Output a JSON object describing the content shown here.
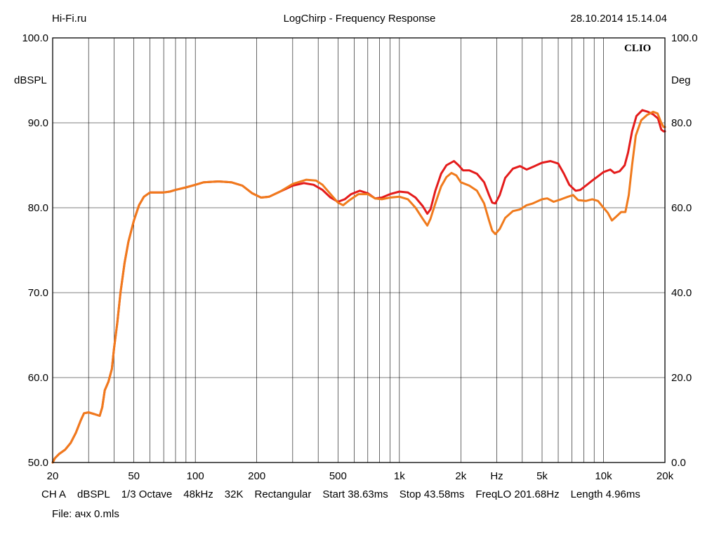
{
  "header": {
    "left": "Hi-Fi.ru",
    "center": "LogChirp - Frequency Response",
    "right": "28.10.2014 15.14.04"
  },
  "logo": "CLIO",
  "footer": {
    "params": [
      "CH A",
      "dBSPL",
      "1/3 Octave",
      "48kHz",
      "32K",
      "Rectangular",
      "Start 38.63ms",
      "Stop 43.58ms",
      "FreqLO 201.68Hz",
      "Length 4.96ms"
    ],
    "file": "File: ачх 0.mls"
  },
  "chart_data": {
    "type": "line",
    "title": "LogChirp - Frequency Response",
    "x_scale": "log",
    "xlim": [
      20,
      20000
    ],
    "ylim": [
      50,
      100
    ],
    "y2lim": [
      0,
      100
    ],
    "grid": true,
    "ylabel": "dBSPL",
    "y2label": "Deg",
    "x_tick_labels": [
      {
        "value": 20,
        "label": "20"
      },
      {
        "value": 50,
        "label": "50"
      },
      {
        "value": 100,
        "label": "100"
      },
      {
        "value": 200,
        "label": "200"
      },
      {
        "value": 500,
        "label": "500"
      },
      {
        "value": 1000,
        "label": "1k"
      },
      {
        "value": 2000,
        "label": "2k"
      },
      {
        "value": 3000,
        "label": "Hz"
      },
      {
        "value": 5000,
        "label": "5k"
      },
      {
        "value": 10000,
        "label": "10k"
      },
      {
        "value": 20000,
        "label": "20k"
      }
    ],
    "y_tick_labels": [
      "50.0",
      "60.0",
      "70.0",
      "80.0",
      "90.0",
      "100.0"
    ],
    "y2_tick_labels": [
      "0.0",
      "20.0",
      "40.0",
      "60.0",
      "80.0",
      "100.0"
    ],
    "series": [
      {
        "color": "#e41b1b",
        "points": [
          [
            20,
            50.0
          ],
          [
            20.5,
            50.5
          ],
          [
            21.5,
            51.0
          ],
          [
            23,
            51.5
          ],
          [
            24.5,
            52.3
          ],
          [
            26,
            53.5
          ],
          [
            27.5,
            55.0
          ],
          [
            28.5,
            55.8
          ],
          [
            30,
            55.9
          ],
          [
            32,
            55.7
          ],
          [
            34,
            55.5
          ],
          [
            35,
            56.5
          ],
          [
            36,
            58.5
          ],
          [
            37.5,
            59.5
          ],
          [
            39,
            61.0
          ],
          [
            40,
            63.5
          ],
          [
            41.5,
            66.5
          ],
          [
            43,
            70.0
          ],
          [
            45,
            73.5
          ],
          [
            47,
            76.0
          ],
          [
            50,
            78.5
          ],
          [
            53,
            80.3
          ],
          [
            56,
            81.3
          ],
          [
            60,
            81.8
          ],
          [
            65,
            81.8
          ],
          [
            70,
            81.8
          ],
          [
            75,
            81.9
          ],
          [
            80,
            82.1
          ],
          [
            90,
            82.4
          ],
          [
            100,
            82.7
          ],
          [
            110,
            83.0
          ],
          [
            130,
            83.1
          ],
          [
            150,
            83.0
          ],
          [
            170,
            82.6
          ],
          [
            190,
            81.7
          ],
          [
            210,
            81.2
          ],
          [
            230,
            81.3
          ],
          [
            260,
            81.9
          ],
          [
            300,
            82.6
          ],
          [
            340,
            82.9
          ],
          [
            380,
            82.7
          ],
          [
            420,
            82.1
          ],
          [
            460,
            81.2
          ],
          [
            500,
            80.7
          ],
          [
            540,
            81.0
          ],
          [
            580,
            81.6
          ],
          [
            640,
            82.0
          ],
          [
            700,
            81.7
          ],
          [
            760,
            81.1
          ],
          [
            820,
            81.2
          ],
          [
            900,
            81.6
          ],
          [
            1000,
            81.9
          ],
          [
            1100,
            81.8
          ],
          [
            1200,
            81.2
          ],
          [
            1300,
            80.2
          ],
          [
            1370,
            79.3
          ],
          [
            1420,
            79.8
          ],
          [
            1500,
            82.0
          ],
          [
            1600,
            84.0
          ],
          [
            1700,
            85.0
          ],
          [
            1850,
            85.5
          ],
          [
            1950,
            85.0
          ],
          [
            2050,
            84.4
          ],
          [
            2200,
            84.4
          ],
          [
            2400,
            84.0
          ],
          [
            2600,
            83.0
          ],
          [
            2750,
            81.5
          ],
          [
            2850,
            80.6
          ],
          [
            2950,
            80.5
          ],
          [
            3100,
            81.5
          ],
          [
            3300,
            83.5
          ],
          [
            3600,
            84.6
          ],
          [
            3900,
            84.9
          ],
          [
            4200,
            84.5
          ],
          [
            4500,
            84.8
          ],
          [
            5000,
            85.3
          ],
          [
            5500,
            85.5
          ],
          [
            6000,
            85.2
          ],
          [
            6400,
            84.0
          ],
          [
            6800,
            82.7
          ],
          [
            7300,
            82.0
          ],
          [
            7700,
            82.1
          ],
          [
            8200,
            82.6
          ],
          [
            8800,
            83.2
          ],
          [
            9400,
            83.7
          ],
          [
            10000,
            84.2
          ],
          [
            10800,
            84.5
          ],
          [
            11300,
            84.1
          ],
          [
            12000,
            84.3
          ],
          [
            12700,
            85.0
          ],
          [
            13200,
            86.5
          ],
          [
            13800,
            89.0
          ],
          [
            14500,
            90.8
          ],
          [
            15500,
            91.5
          ],
          [
            16500,
            91.3
          ],
          [
            17500,
            91.0
          ],
          [
            18500,
            90.5
          ],
          [
            19200,
            89.2
          ],
          [
            19700,
            89.0
          ],
          [
            20000,
            89.0
          ]
        ]
      },
      {
        "color": "#f07a1c",
        "points": [
          [
            20,
            50.0
          ],
          [
            20.5,
            50.5
          ],
          [
            21.5,
            51.0
          ],
          [
            23,
            51.5
          ],
          [
            24.5,
            52.3
          ],
          [
            26,
            53.5
          ],
          [
            27.5,
            55.0
          ],
          [
            28.5,
            55.8
          ],
          [
            30,
            55.9
          ],
          [
            32,
            55.7
          ],
          [
            34,
            55.5
          ],
          [
            35,
            56.5
          ],
          [
            36,
            58.5
          ],
          [
            37.5,
            59.5
          ],
          [
            39,
            61.0
          ],
          [
            40,
            63.5
          ],
          [
            41.5,
            66.5
          ],
          [
            43,
            70.0
          ],
          [
            45,
            73.5
          ],
          [
            47,
            76.0
          ],
          [
            50,
            78.5
          ],
          [
            53,
            80.3
          ],
          [
            56,
            81.3
          ],
          [
            60,
            81.8
          ],
          [
            65,
            81.8
          ],
          [
            70,
            81.8
          ],
          [
            75,
            81.9
          ],
          [
            80,
            82.1
          ],
          [
            90,
            82.4
          ],
          [
            100,
            82.7
          ],
          [
            110,
            83.0
          ],
          [
            130,
            83.1
          ],
          [
            150,
            83.0
          ],
          [
            170,
            82.6
          ],
          [
            190,
            81.7
          ],
          [
            210,
            81.2
          ],
          [
            230,
            81.3
          ],
          [
            260,
            81.9
          ],
          [
            300,
            82.8
          ],
          [
            350,
            83.3
          ],
          [
            390,
            83.2
          ],
          [
            420,
            82.7
          ],
          [
            460,
            81.6
          ],
          [
            500,
            80.6
          ],
          [
            530,
            80.3
          ],
          [
            570,
            80.9
          ],
          [
            630,
            81.6
          ],
          [
            700,
            81.6
          ],
          [
            760,
            81.1
          ],
          [
            820,
            81.0
          ],
          [
            900,
            81.2
          ],
          [
            1000,
            81.3
          ],
          [
            1100,
            81.0
          ],
          [
            1200,
            80.0
          ],
          [
            1300,
            78.7
          ],
          [
            1370,
            77.9
          ],
          [
            1420,
            78.7
          ],
          [
            1500,
            80.5
          ],
          [
            1600,
            82.5
          ],
          [
            1700,
            83.6
          ],
          [
            1800,
            84.1
          ],
          [
            1900,
            83.8
          ],
          [
            2000,
            83.0
          ],
          [
            2200,
            82.6
          ],
          [
            2400,
            82.0
          ],
          [
            2600,
            80.5
          ],
          [
            2750,
            78.5
          ],
          [
            2850,
            77.3
          ],
          [
            2950,
            76.9
          ],
          [
            3100,
            77.5
          ],
          [
            3300,
            78.8
          ],
          [
            3600,
            79.6
          ],
          [
            3900,
            79.8
          ],
          [
            4200,
            80.3
          ],
          [
            4500,
            80.5
          ],
          [
            5000,
            81.0
          ],
          [
            5300,
            81.1
          ],
          [
            5700,
            80.7
          ],
          [
            6200,
            81.0
          ],
          [
            6700,
            81.3
          ],
          [
            7100,
            81.5
          ],
          [
            7500,
            80.9
          ],
          [
            8200,
            80.8
          ],
          [
            8800,
            81.0
          ],
          [
            9400,
            80.8
          ],
          [
            10000,
            80.0
          ],
          [
            10500,
            79.4
          ],
          [
            11000,
            78.5
          ],
          [
            11600,
            79.0
          ],
          [
            12200,
            79.5
          ],
          [
            12800,
            79.5
          ],
          [
            13300,
            81.5
          ],
          [
            13800,
            85.0
          ],
          [
            14400,
            88.5
          ],
          [
            15300,
            90.3
          ],
          [
            16300,
            90.9
          ],
          [
            17500,
            91.3
          ],
          [
            18400,
            91.1
          ],
          [
            19200,
            90.0
          ],
          [
            19700,
            89.5
          ],
          [
            20000,
            89.5
          ]
        ]
      }
    ]
  }
}
